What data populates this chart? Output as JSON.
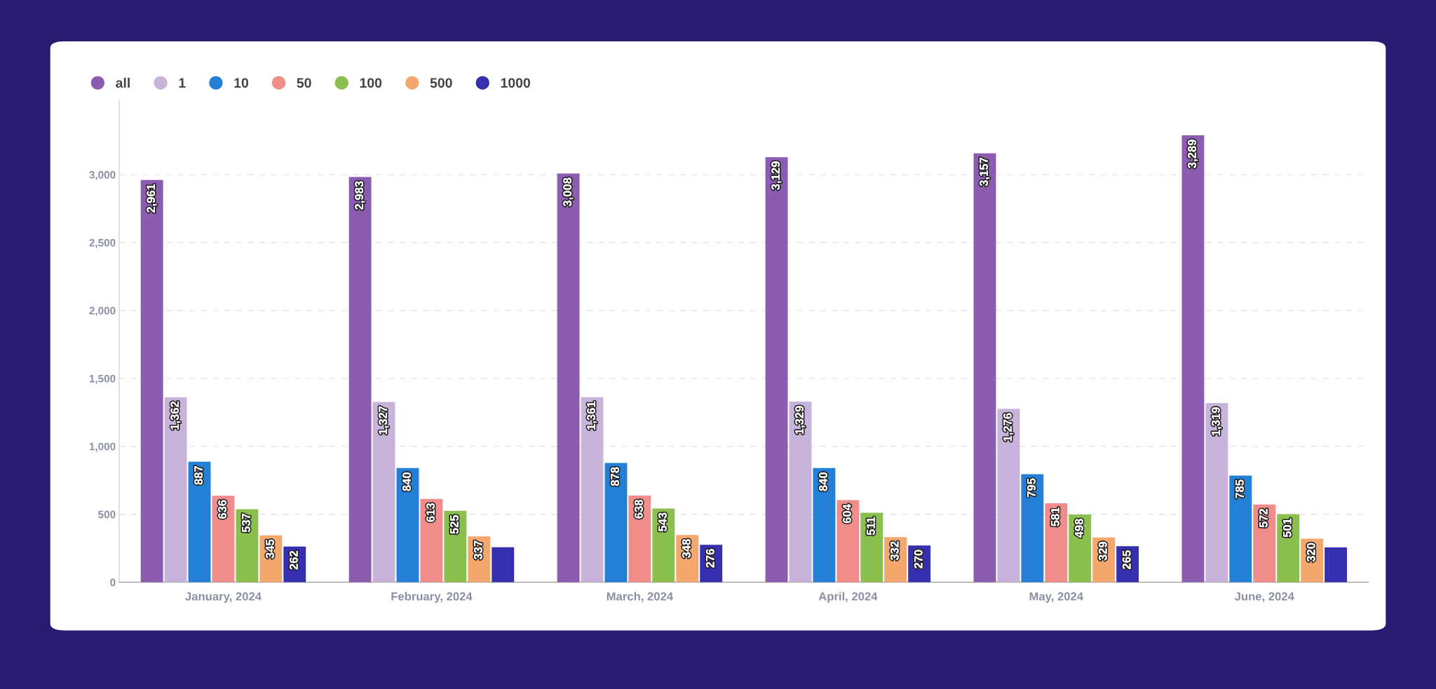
{
  "chart_data": {
    "type": "bar",
    "categories": [
      "January, 2024",
      "February, 2024",
      "March, 2024",
      "April, 2024",
      "May, 2024",
      "June, 2024"
    ],
    "series": [
      {
        "name": "all",
        "color": "#8b5cb0",
        "values": [
          2961,
          2983,
          3008,
          3129,
          3157,
          3289
        ],
        "value_labels": [
          "2,961",
          "2,983",
          "3,008",
          "3,129",
          "3,157",
          "3,289"
        ]
      },
      {
        "name": "1",
        "color": "#c8b3da",
        "values": [
          1362,
          1327,
          1361,
          1329,
          1276,
          1319
        ],
        "value_labels": [
          "1,362",
          "1,327",
          "1,361",
          "1,329",
          "1,276",
          "1,319"
        ]
      },
      {
        "name": "10",
        "color": "#2380d6",
        "values": [
          887,
          840,
          878,
          840,
          795,
          785
        ],
        "value_labels": [
          "887",
          "840",
          "878",
          "840",
          "795",
          "785"
        ]
      },
      {
        "name": "50",
        "color": "#f08c8a",
        "values": [
          636,
          613,
          638,
          604,
          581,
          572
        ],
        "value_labels": [
          "636",
          "613",
          "638",
          "604",
          "581",
          "572"
        ]
      },
      {
        "name": "100",
        "color": "#8bc04e",
        "values": [
          537,
          525,
          543,
          511,
          498,
          501
        ],
        "value_labels": [
          "537",
          "525",
          "543",
          "511",
          "498",
          "501"
        ]
      },
      {
        "name": "500",
        "color": "#f4a86e",
        "values": [
          345,
          337,
          348,
          332,
          329,
          320
        ],
        "value_labels": [
          "345",
          "337",
          "348",
          "332",
          "329",
          "320"
        ]
      },
      {
        "name": "1000",
        "color": "#3630b0",
        "values": [
          262,
          257,
          276,
          270,
          265,
          256
        ],
        "value_labels": [
          "262",
          null,
          "276",
          "270",
          "265",
          null
        ]
      }
    ],
    "ylim": [
      0,
      3550
    ],
    "yticks": [
      0,
      {
        "value": 500,
        "label": "500"
      },
      {
        "value": 1000,
        "label": "1,000"
      },
      {
        "value": 1500,
        "label": "1,500"
      },
      {
        "value": 2000,
        "label": "2,000"
      },
      {
        "value": 2500,
        "label": "2,500"
      },
      {
        "value": 3000,
        "label": "3,000"
      }
    ],
    "grid": "y",
    "legend": "top left",
    "marker": "circle"
  }
}
